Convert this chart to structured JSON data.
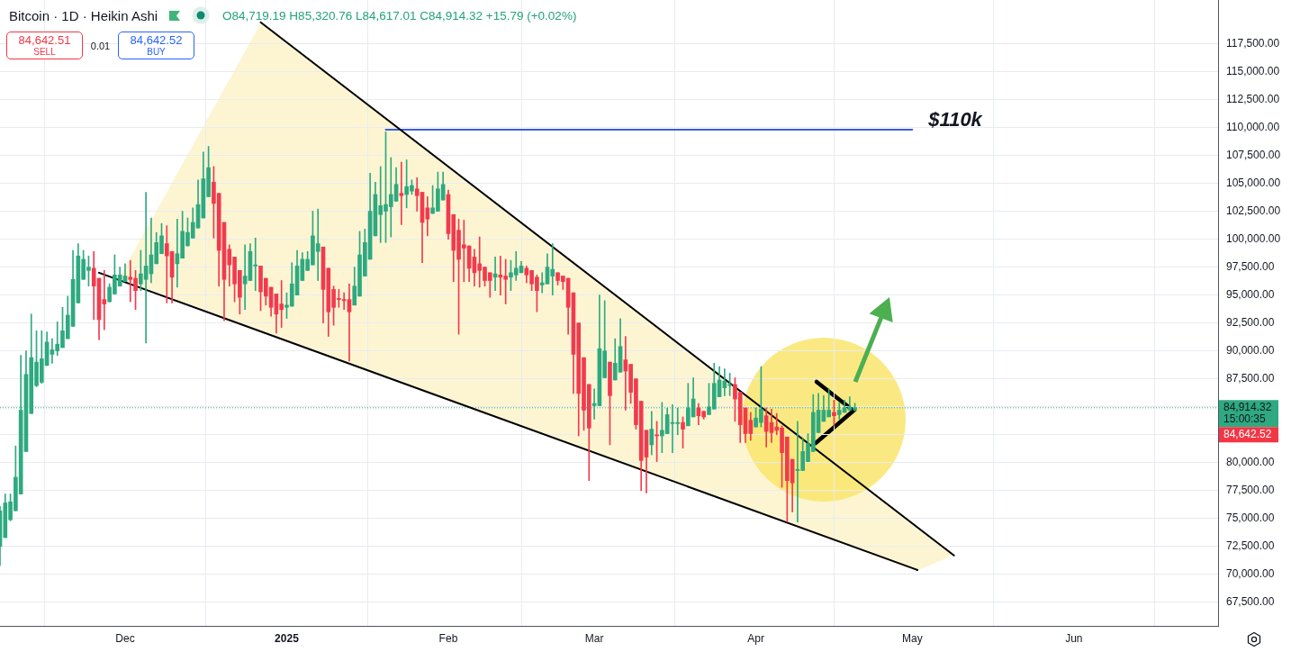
{
  "chart_data": {
    "type": "candlestick",
    "title": "Bitcoin · 1D · Heikin Ashi",
    "subtitle": "O84,719.19 H85,320.76 L84,617.01 C84,914.32 +15.79 (+0.02%)",
    "x": [
      "2024-11-07",
      "2024-11-08",
      "2024-11-09",
      "2024-11-10",
      "2024-11-11",
      "2024-11-12",
      "2024-11-13",
      "2024-11-14",
      "2024-11-15",
      "2024-11-16",
      "2024-11-17",
      "2024-11-18",
      "2024-11-19",
      "2024-11-20",
      "2024-11-21",
      "2024-11-22",
      "2024-11-23",
      "2024-11-24",
      "2024-11-25",
      "2024-11-26",
      "2024-11-27",
      "2024-11-28",
      "2024-11-29",
      "2024-11-30",
      "2024-12-01",
      "2024-12-02",
      "2024-12-03",
      "2024-12-04",
      "2024-12-05",
      "2024-12-06",
      "2024-12-07",
      "2024-12-08",
      "2024-12-09",
      "2024-12-10",
      "2024-12-11",
      "2024-12-12",
      "2024-12-13",
      "2024-12-14",
      "2024-12-15",
      "2024-12-16",
      "2024-12-17",
      "2024-12-18",
      "2024-12-19",
      "2024-12-20",
      "2024-12-21",
      "2024-12-22",
      "2024-12-23",
      "2024-12-24",
      "2024-12-25",
      "2024-12-26",
      "2024-12-27",
      "2024-12-28",
      "2024-12-29",
      "2024-12-30",
      "2024-12-31",
      "2025-01-01",
      "2025-01-02",
      "2025-01-03",
      "2025-01-04",
      "2025-01-05",
      "2025-01-06",
      "2025-01-07",
      "2025-01-08",
      "2025-01-09",
      "2025-01-10",
      "2025-01-11",
      "2025-01-12",
      "2025-01-13",
      "2025-01-14",
      "2025-01-15",
      "2025-01-16",
      "2025-01-17",
      "2025-01-18",
      "2025-01-19",
      "2025-01-20",
      "2025-01-21",
      "2025-01-22",
      "2025-01-23",
      "2025-01-24",
      "2025-01-25",
      "2025-01-26",
      "2025-01-27",
      "2025-01-28",
      "2025-01-29",
      "2025-01-30",
      "2025-01-31",
      "2025-02-01",
      "2025-02-02",
      "2025-02-03",
      "2025-02-04",
      "2025-02-05",
      "2025-02-06",
      "2025-02-07",
      "2025-02-08",
      "2025-02-09",
      "2025-02-10",
      "2025-02-11",
      "2025-02-12",
      "2025-02-13",
      "2025-02-14",
      "2025-02-15",
      "2025-02-16",
      "2025-02-17",
      "2025-02-18",
      "2025-02-19",
      "2025-02-20",
      "2025-02-21",
      "2025-02-22",
      "2025-02-23",
      "2025-02-24",
      "2025-02-25",
      "2025-02-26",
      "2025-02-27",
      "2025-02-28",
      "2025-03-01",
      "2025-03-02",
      "2025-03-03",
      "2025-03-04",
      "2025-03-05",
      "2025-03-06",
      "2025-03-07",
      "2025-03-08",
      "2025-03-09",
      "2025-03-10",
      "2025-03-11",
      "2025-03-12",
      "2025-03-13",
      "2025-03-14",
      "2025-03-15",
      "2025-03-16",
      "2025-03-17",
      "2025-03-18",
      "2025-03-19",
      "2025-03-20",
      "2025-03-21",
      "2025-03-22",
      "2025-03-23",
      "2025-03-24",
      "2025-03-25",
      "2025-03-26",
      "2025-03-27",
      "2025-03-28",
      "2025-03-29",
      "2025-03-30",
      "2025-03-31",
      "2025-04-01",
      "2025-04-02",
      "2025-04-03",
      "2025-04-04",
      "2025-04-05",
      "2025-04-06",
      "2025-04-07",
      "2025-04-08",
      "2025-04-09",
      "2025-04-10",
      "2025-04-11",
      "2025-04-12",
      "2025-04-13",
      "2025-04-14",
      "2025-04-15",
      "2025-04-16",
      "2025-04-17",
      "2025-04-18",
      "2025-04-19",
      "2025-04-20"
    ],
    "ohlc": [
      [
        72500,
        76100,
        70800,
        75700
      ],
      [
        73300,
        77200,
        73300,
        76400
      ],
      [
        74900,
        77200,
        74800,
        76500
      ],
      [
        75700,
        81500,
        75700,
        78700
      ],
      [
        77200,
        89600,
        77200,
        84700
      ],
      [
        81000,
        90000,
        81000,
        87900
      ],
      [
        84400,
        93300,
        84400,
        89400
      ],
      [
        86900,
        91800,
        86800,
        89000
      ],
      [
        87200,
        91800,
        87100,
        89300
      ],
      [
        88700,
        91700,
        88700,
        90800
      ],
      [
        89700,
        91100,
        88900,
        90100
      ],
      [
        90000,
        92600,
        89600,
        90600
      ],
      [
        90300,
        93900,
        90300,
        91800
      ],
      [
        91100,
        94900,
        91100,
        93200
      ],
      [
        92200,
        99000,
        92200,
        96400
      ],
      [
        94300,
        99600,
        94300,
        98500
      ],
      [
        96400,
        99000,
        96400,
        98200
      ],
      [
        97200,
        98500,
        95800,
        97500
      ],
      [
        97400,
        98900,
        92800,
        95800
      ],
      [
        96500,
        96500,
        91000,
        92800
      ],
      [
        94600,
        97200,
        91900,
        94200
      ],
      [
        94400,
        96000,
        94400,
        95700
      ],
      [
        95100,
        98600,
        95100,
        96800
      ],
      [
        95800,
        97500,
        95800,
        96800
      ],
      [
        96200,
        97800,
        96200,
        96700
      ],
      [
        96600,
        98100,
        94400,
        96400
      ],
      [
        96500,
        97200,
        93700,
        95400
      ],
      [
        96000,
        99000,
        95400,
        96900
      ],
      [
        96400,
        104200,
        90700,
        97600
      ],
      [
        96900,
        101900,
        96100,
        98600
      ],
      [
        97800,
        100600,
        97800,
        99700
      ],
      [
        98700,
        101400,
        98700,
        100300
      ],
      [
        99600,
        101200,
        94300,
        98500
      ],
      [
        98900,
        98900,
        94300,
        96600
      ],
      [
        97800,
        101800,
        95700,
        98700
      ],
      [
        98300,
        102500,
        98300,
        100700
      ],
      [
        99400,
        101900,
        99400,
        100600
      ],
      [
        100100,
        102800,
        100100,
        101500
      ],
      [
        101000,
        105300,
        101000,
        103100
      ],
      [
        101900,
        107800,
        101900,
        105400
      ],
      [
        103800,
        108300,
        103800,
        106400
      ],
      [
        105100,
        106500,
        100100,
        103200
      ],
      [
        104100,
        104100,
        95800,
        99000
      ],
      [
        101500,
        101500,
        92700,
        96400
      ],
      [
        99100,
        99500,
        95800,
        97700
      ],
      [
        98400,
        98400,
        94400,
        96000
      ],
      [
        97200,
        97200,
        93300,
        94800
      ],
      [
        96000,
        99500,
        93700,
        96700
      ],
      [
        96300,
        99600,
        96300,
        98900
      ],
      [
        97600,
        100100,
        95400,
        97700
      ],
      [
        97600,
        97600,
        93600,
        95300
      ],
      [
        96500,
        96500,
        94100,
        94900
      ],
      [
        95700,
        95700,
        93100,
        93900
      ],
      [
        95100,
        95100,
        91600,
        93300
      ],
      [
        94200,
        96300,
        92100,
        93700
      ],
      [
        93900,
        95200,
        92900,
        94100
      ],
      [
        94000,
        97900,
        94000,
        96000
      ],
      [
        95000,
        99000,
        95000,
        97600
      ],
      [
        96300,
        98800,
        96300,
        98200
      ],
      [
        97200,
        98900,
        97200,
        98200
      ],
      [
        97700,
        102500,
        97700,
        100300
      ],
      [
        98900,
        102700,
        96300,
        99600
      ],
      [
        99300,
        99300,
        92500,
        95500
      ],
      [
        97400,
        97400,
        91300,
        93500
      ],
      [
        95500,
        95800,
        92300,
        93900
      ],
      [
        94700,
        95500,
        93900,
        94600
      ],
      [
        94600,
        95200,
        93700,
        94500
      ],
      [
        94600,
        96000,
        89100,
        93500
      ],
      [
        94100,
        97500,
        94100,
        95800
      ],
      [
        94900,
        100700,
        94900,
        98600
      ],
      [
        96700,
        100900,
        96700,
        99700
      ],
      [
        98200,
        105900,
        98200,
        102500
      ],
      [
        100300,
        105100,
        100300,
        104000
      ],
      [
        102200,
        106500,
        99700,
        103000
      ],
      [
        102500,
        109600,
        99700,
        103100
      ],
      [
        102900,
        107300,
        100200,
        104000
      ],
      [
        103400,
        106400,
        103400,
        104900
      ],
      [
        104100,
        106900,
        101300,
        103900
      ],
      [
        104000,
        107100,
        102800,
        104700
      ],
      [
        104300,
        105300,
        104000,
        104800
      ],
      [
        104500,
        105500,
        102500,
        103900
      ],
      [
        104200,
        104200,
        97900,
        101500
      ],
      [
        102800,
        103800,
        100300,
        101800
      ],
      [
        102300,
        104800,
        102300,
        102800
      ],
      [
        102500,
        106000,
        102500,
        104500
      ],
      [
        103500,
        106000,
        103500,
        104900
      ],
      [
        104000,
        104400,
        100000,
        100500
      ],
      [
        102200,
        102200,
        96200,
        99000
      ],
      [
        100800,
        101800,
        91500,
        98200
      ],
      [
        99500,
        101700,
        96200,
        99200
      ],
      [
        99400,
        99400,
        96200,
        97400
      ],
      [
        98400,
        99100,
        95800,
        97000
      ],
      [
        97800,
        100200,
        95700,
        97200
      ],
      [
        97500,
        97500,
        95800,
        96300
      ],
      [
        97000,
        97000,
        94800,
        96300
      ],
      [
        96600,
        98400,
        95400,
        96900
      ],
      [
        96800,
        98500,
        95000,
        96600
      ],
      [
        96700,
        98200,
        94200,
        96400
      ],
      [
        96600,
        98100,
        95400,
        97000
      ],
      [
        96800,
        98900,
        96300,
        97400
      ],
      [
        97000,
        98000,
        97000,
        97600
      ],
      [
        97400,
        97600,
        96100,
        96800
      ],
      [
        97200,
        97200,
        95400,
        96000
      ],
      [
        96600,
        96800,
        93500,
        95400
      ],
      [
        95900,
        97000,
        95200,
        96100
      ],
      [
        96000,
        98700,
        96000,
        97500
      ],
      [
        96700,
        99600,
        95000,
        97300
      ],
      [
        97000,
        97000,
        95900,
        96300
      ],
      [
        96700,
        96700,
        95500,
        96200
      ],
      [
        96500,
        96500,
        91500,
        93900
      ],
      [
        95200,
        95200,
        86200,
        89700
      ],
      [
        92500,
        92500,
        82400,
        86200
      ],
      [
        89400,
        89400,
        82900,
        84700
      ],
      [
        87000,
        87000,
        78400,
        83100
      ],
      [
        85100,
        86600,
        83900,
        85300
      ],
      [
        85100,
        95000,
        85100,
        90200
      ],
      [
        87600,
        94500,
        87600,
        90000
      ],
      [
        89000,
        89000,
        81600,
        86000
      ],
      [
        87400,
        91100,
        87400,
        88900
      ],
      [
        88100,
        92900,
        88100,
        90400
      ],
      [
        89200,
        91300,
        84700,
        88200
      ],
      [
        88800,
        88800,
        85300,
        86300
      ],
      [
        87500,
        87500,
        83000,
        83400
      ],
      [
        85500,
        85500,
        77500,
        80200
      ],
      [
        82900,
        82900,
        77300,
        80500
      ],
      [
        81600,
        84600,
        80700,
        83000
      ],
      [
        82500,
        83700,
        80100,
        82400
      ],
      [
        82400,
        85400,
        80900,
        82900
      ],
      [
        82600,
        84900,
        82600,
        84300
      ],
      [
        83500,
        85200,
        80900,
        83600
      ],
      [
        83500,
        84900,
        82500,
        83600
      ],
      [
        83600,
        84100,
        81300,
        83000
      ],
      [
        83300,
        87100,
        83300,
        84900
      ],
      [
        84100,
        87600,
        84100,
        85700
      ],
      [
        84900,
        85300,
        83400,
        84200
      ],
      [
        84600,
        84600,
        83900,
        84100
      ],
      [
        84300,
        87100,
        84300,
        85000
      ],
      [
        84800,
        88900,
        84800,
        87100
      ],
      [
        85900,
        88600,
        85900,
        87400
      ],
      [
        86700,
        88400,
        86000,
        87300
      ],
      [
        86900,
        88000,
        86000,
        87000
      ],
      [
        87000,
        87600,
        83700,
        85700
      ],
      [
        86300,
        86300,
        81800,
        83400
      ],
      [
        84900,
        84900,
        81800,
        82600
      ],
      [
        83800,
        84500,
        82000,
        82600
      ],
      [
        83200,
        84900,
        83200,
        84000
      ],
      [
        83600,
        88600,
        83200,
        84800
      ],
      [
        84200,
        84900,
        81400,
        82800
      ],
      [
        83600,
        84800,
        81800,
        82700
      ],
      [
        83200,
        84400,
        82500,
        82900
      ],
      [
        83100,
        83300,
        77800,
        80900
      ],
      [
        82300,
        82300,
        74700,
        78400
      ],
      [
        80300,
        80300,
        75600,
        78200
      ],
      [
        79300,
        83700,
        74700,
        79400
      ],
      [
        79300,
        82200,
        79300,
        81000
      ],
      [
        80100,
        82600,
        80100,
        81700
      ],
      [
        81000,
        86100,
        81000,
        84500
      ],
      [
        82700,
        86200,
        82700,
        84700
      ],
      [
        83700,
        86000,
        83700,
        84700
      ],
      [
        84100,
        86600,
        84100,
        84700
      ],
      [
        84500,
        85600,
        83300,
        84200
      ],
      [
        84300,
        85400,
        83900,
        84700
      ],
      [
        84500,
        85600,
        84500,
        84900
      ],
      [
        84700,
        85900,
        84700,
        85000
      ],
      [
        84719.19,
        85320.76,
        84617.01,
        84914.32
      ]
    ],
    "colors": [
      "#2ea980",
      "#2ea980",
      "#2ea980",
      "#2ea980",
      "#2ea980",
      "#2ea980",
      "#2ea980",
      "#2ea980",
      "#2ea980",
      "#2ea980",
      "#2ea980",
      "#2ea980",
      "#2ea980",
      "#2ea980",
      "#2ea980",
      "#2ea980",
      "#2ea980",
      "#2ea980",
      "#f23a4e",
      "#f23a4e",
      "#f23a4e",
      "#2ea980",
      "#2ea980",
      "#2ea980",
      "#2ea980",
      "#f23a4e",
      "#f23a4e",
      "#2ea980",
      "#2ea980",
      "#2ea980",
      "#2ea980",
      "#2ea980",
      "#f23a4e",
      "#f23a4e",
      "#2ea980",
      "#2ea980",
      "#2ea980",
      "#2ea980",
      "#2ea980",
      "#2ea980",
      "#2ea980",
      "#f23a4e",
      "#f23a4e",
      "#f23a4e",
      "#f23a4e",
      "#f23a4e",
      "#f23a4e",
      "#2ea980",
      "#2ea980",
      "#2ea980",
      "#f23a4e",
      "#f23a4e",
      "#f23a4e",
      "#f23a4e",
      "#f23a4e",
      "#2ea980",
      "#2ea980",
      "#2ea980",
      "#2ea980",
      "#2ea980",
      "#2ea980",
      "#2ea980",
      "#f23a4e",
      "#f23a4e",
      "#f23a4e",
      "#f23a4e",
      "#f23a4e",
      "#f23a4e",
      "#2ea980",
      "#2ea980",
      "#2ea980",
      "#2ea980",
      "#2ea980",
      "#2ea980",
      "#2ea980",
      "#2ea980",
      "#2ea980",
      "#f23a4e",
      "#2ea980",
      "#2ea980",
      "#f23a4e",
      "#f23a4e",
      "#f23a4e",
      "#2ea980",
      "#2ea980",
      "#2ea980",
      "#f23a4e",
      "#f23a4e",
      "#f23a4e",
      "#f23a4e",
      "#f23a4e",
      "#f23a4e",
      "#f23a4e",
      "#f23a4e",
      "#f23a4e",
      "#2ea980",
      "#f23a4e",
      "#f23a4e",
      "#2ea980",
      "#2ea980",
      "#2ea980",
      "#f23a4e",
      "#f23a4e",
      "#f23a4e",
      "#2ea980",
      "#2ea980",
      "#2ea980",
      "#f23a4e",
      "#f23a4e",
      "#f23a4e",
      "#f23a4e",
      "#f23a4e",
      "#f23a4e",
      "#f23a4e",
      "#2ea980",
      "#2ea980",
      "#2ea980",
      "#f23a4e",
      "#2ea980",
      "#2ea980",
      "#f23a4e",
      "#f23a4e",
      "#f23a4e",
      "#f23a4e",
      "#f23a4e",
      "#2ea980",
      "#f23a4e",
      "#2ea980",
      "#2ea980",
      "#2ea980",
      "#2ea980",
      "#f23a4e",
      "#2ea980",
      "#2ea980",
      "#f23a4e",
      "#f23a4e",
      "#2ea980",
      "#2ea980",
      "#2ea980",
      "#2ea980",
      "#2ea980",
      "#f23a4e",
      "#f23a4e",
      "#f23a4e",
      "#f23a4e",
      "#2ea980",
      "#2ea980",
      "#f23a4e",
      "#f23a4e",
      "#f23a4e",
      "#f23a4e",
      "#f23a4e",
      "#f23a4e",
      "#2ea980",
      "#2ea980",
      "#2ea980",
      "#2ea980",
      "#2ea980",
      "#2ea980",
      "#2ea980",
      "#f23a4e",
      "#2ea980",
      "#2ea980",
      "#2ea980",
      "#2ea980"
    ],
    "series": [
      {
        "type": "line",
        "x": [
          "2024-12-27",
          "2025-05-09"
        ],
        "values": [
          119400,
          71700
        ],
        "color": "#000000"
      },
      {
        "type": "line",
        "x": [
          "2024-11-26",
          "2025-05-02"
        ],
        "values": [
          97000,
          70400
        ],
        "color": "#000000"
      },
      {
        "type": "line",
        "name": "$110k",
        "x": [
          "2025-01-20",
          "2025-05-01"
        ],
        "values": [
          109800,
          109800
        ],
        "color": "#3b5fd9"
      }
    ],
    "xlim": [
      "2024-11-07",
      "2025-06-28T16:00"
    ],
    "ylim": [
      65400,
      121400
    ],
    "xticks": [
      {
        "value": "2024-12-01",
        "label": "Dec"
      },
      {
        "value": "2025-01-01",
        "label": "2025"
      },
      {
        "value": "2025-02-01",
        "label": "Feb"
      },
      {
        "value": "2025-03-01",
        "label": "Mar"
      },
      {
        "value": "2025-04-01",
        "label": "Apr"
      },
      {
        "value": "2025-05-01",
        "label": "May"
      },
      {
        "value": "2025-06-01",
        "label": "Jun"
      }
    ],
    "yticks": [
      {
        "value": 67500,
        "label": "67,500.00"
      },
      {
        "value": 70000,
        "label": "70,000.00"
      },
      {
        "value": 72500,
        "label": "72,500.00"
      },
      {
        "value": 75000,
        "label": "75,000.00"
      },
      {
        "value": 77500,
        "label": "77,500.00"
      },
      {
        "value": 80000,
        "label": "80,000.00"
      },
      {
        "value": 82500,
        "label": null
      },
      {
        "value": 85000,
        "label": null
      },
      {
        "value": 87500,
        "label": "87,500.00"
      },
      {
        "value": 90000,
        "label": "90,000.00"
      },
      {
        "value": 92500,
        "label": "92,500.00"
      },
      {
        "value": 95000,
        "label": "95,000.00"
      },
      {
        "value": 97500,
        "label": "97,500.00"
      },
      {
        "value": 100000,
        "label": "100,000.00"
      },
      {
        "value": 102500,
        "label": "102,500.00"
      },
      {
        "value": 105000,
        "label": "105,000.00"
      },
      {
        "value": 107500,
        "label": "107,500.00"
      },
      {
        "value": 110000,
        "label": "110,000.00"
      },
      {
        "value": 112500,
        "label": "112,500.00"
      },
      {
        "value": 115000,
        "label": "115,000.00"
      },
      {
        "value": 117500,
        "label": "117,500.00"
      }
    ],
    "grid": true,
    "ref_lines": [
      {
        "axis": "y",
        "value": 84914.32,
        "label": "84,914.32\n15:00:35",
        "color": "#2ea980",
        "line_style": "dotted"
      }
    ],
    "annotations": [
      "84,642.51",
      "SELL",
      "0.01",
      "84,642.52",
      "BUY",
      "84,642.52"
    ]
  }
}
